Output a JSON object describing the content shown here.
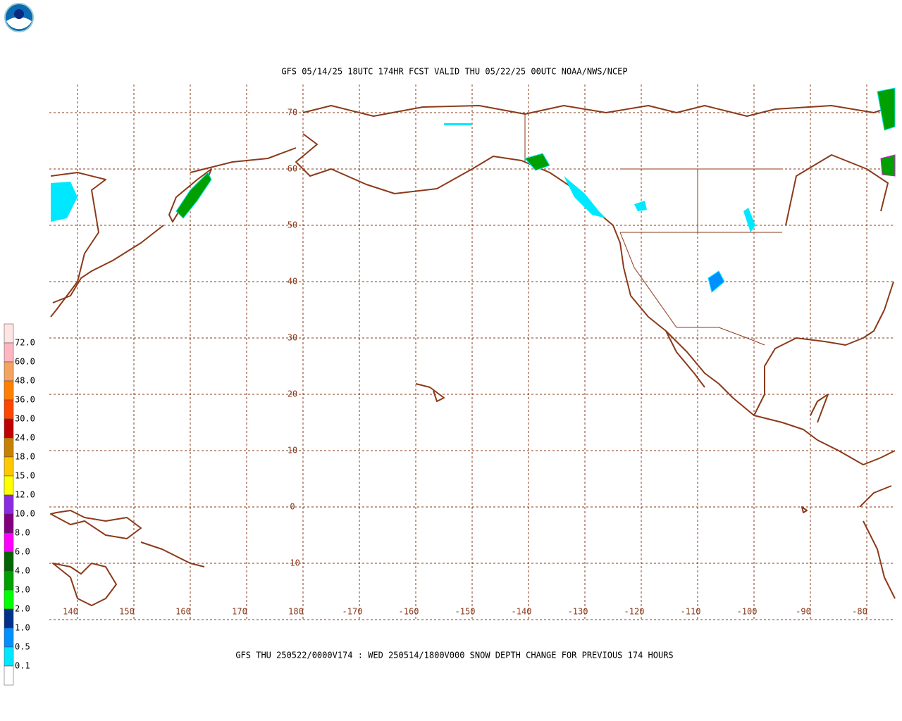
{
  "header": {
    "title": "GFS 05/14/25 18UTC 174HR FCST VALID THU 05/22/25 00UTC NOAA/NWS/NCEP"
  },
  "footer": {
    "caption": "GFS THU 250522/0000V174 : WED 250514/1800V000 SNOW DEPTH CHANGE FOR PREVIOUS 174 HOURS"
  },
  "map": {
    "lat_labels": [
      "70",
      "60",
      "50",
      "40",
      "30",
      "20",
      "10",
      "0",
      "-10"
    ],
    "lon_labels": [
      "140",
      "150",
      "160",
      "170",
      "180",
      "-170",
      "-160",
      "-150",
      "-140",
      "-130",
      "-120",
      "-110",
      "-100",
      "-90",
      "-80"
    ]
  },
  "colorbar": {
    "labels": [
      "72.0",
      "60.0",
      "48.0",
      "36.0",
      "30.0",
      "24.0",
      "18.0",
      "15.0",
      "12.0",
      "10.0",
      "8.0",
      "6.0",
      "4.0",
      "3.0",
      "2.0",
      "1.0",
      "0.5",
      "0.1"
    ],
    "colors": [
      "#ffe4e4",
      "#ffb6c1",
      "#f4a460",
      "#ff8000",
      "#ff4500",
      "#c00000",
      "#c88000",
      "#ffc800",
      "#ffff00",
      "#8a2be2",
      "#800080",
      "#ff00ff",
      "#006400",
      "#00a000",
      "#00ff00",
      "#00308a",
      "#0090ff",
      "#00e8ff",
      "#ffffff"
    ]
  }
}
